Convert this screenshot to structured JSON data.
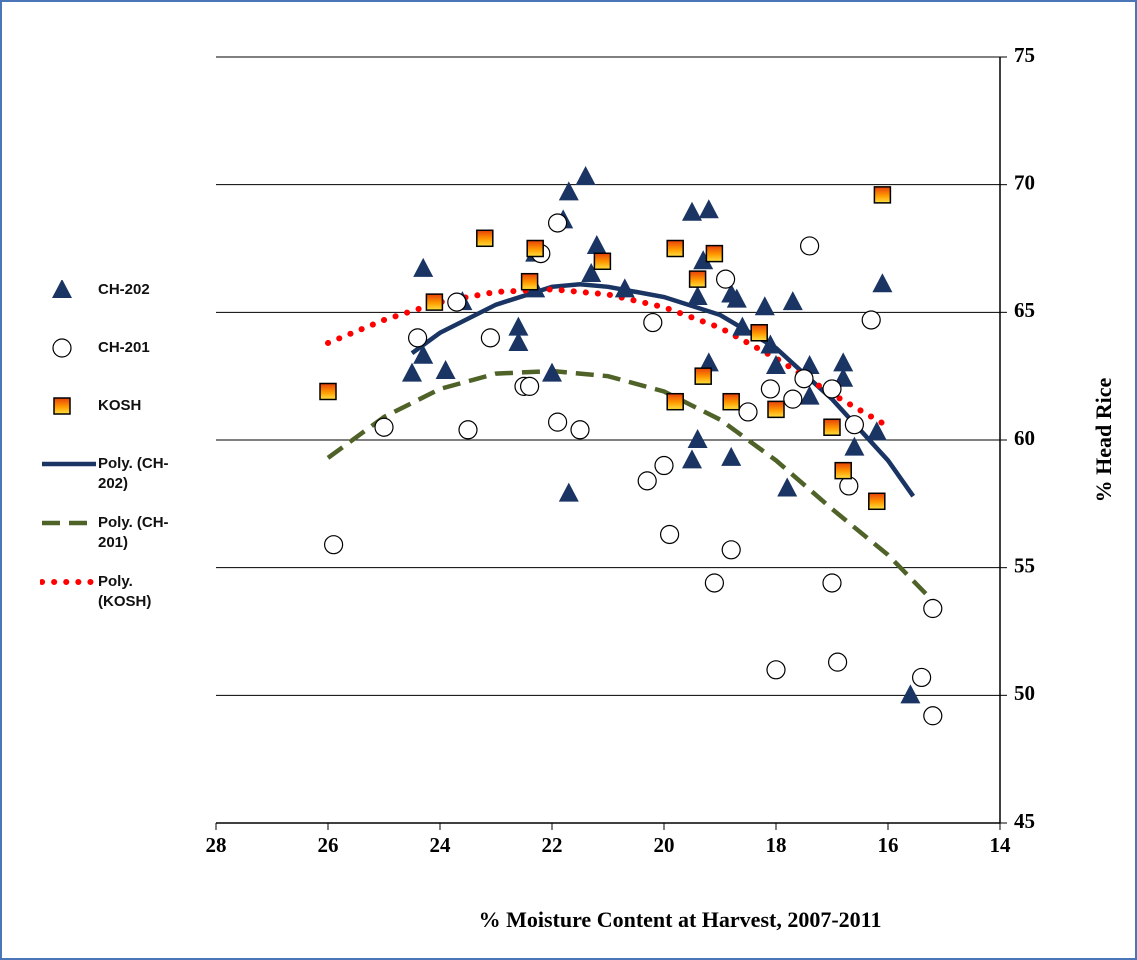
{
  "chart_data": {
    "type": "scatter",
    "x_label": "% Moisture Content at Harvest, 2007-2011",
    "y_label": "% Head Rice",
    "xlim": [
      28,
      14
    ],
    "xticks": [
      28,
      26,
      24,
      22,
      20,
      18,
      16,
      14
    ],
    "ylim": [
      45,
      75
    ],
    "yticks": [
      45,
      50,
      55,
      60,
      65,
      70,
      75
    ],
    "grid": true,
    "y_axis_side": "right",
    "legend": "left",
    "series": [
      {
        "name": "CH-202",
        "color": "#1a3563",
        "marker": "triangle",
        "x": [
          24.3,
          24.3,
          24.5,
          23.9,
          23.6,
          22.6,
          22.6,
          22.0,
          22.3,
          22.3,
          21.8,
          21.7,
          21.4,
          21.2,
          21.3,
          21.7,
          20.7,
          19.5,
          19.2,
          19.4,
          19.3,
          19.2,
          19.4,
          19.5,
          18.8,
          18.7,
          18.8,
          18.6,
          18.2,
          18.1,
          18.0,
          17.7,
          17.8,
          17.4,
          17.4,
          16.8,
          16.8,
          16.6,
          16.2,
          16.1,
          15.6
        ],
        "values": [
          66.7,
          63.3,
          62.6,
          62.7,
          65.4,
          64.4,
          63.8,
          62.6,
          67.3,
          65.9,
          68.6,
          69.7,
          70.3,
          67.6,
          66.5,
          57.9,
          65.9,
          68.9,
          69.0,
          65.6,
          67.0,
          63.0,
          60.0,
          59.2,
          65.7,
          65.5,
          59.3,
          64.4,
          65.2,
          63.7,
          62.9,
          65.4,
          58.1,
          62.9,
          61.7,
          63.0,
          62.4,
          59.7,
          60.3,
          66.1,
          50.0
        ]
      },
      {
        "name": "CH-201",
        "color": "#ffffff",
        "marker": "circle",
        "x": [
          25.9,
          25.0,
          24.4,
          23.7,
          23.5,
          23.1,
          22.5,
          22.4,
          22.2,
          21.9,
          21.9,
          21.5,
          20.3,
          20.2,
          20.0,
          19.9,
          19.1,
          18.9,
          18.8,
          18.5,
          18.1,
          18.0,
          17.7,
          17.5,
          17.4,
          17.0,
          17.0,
          16.9,
          16.7,
          16.6,
          16.3,
          15.4,
          15.2,
          15.2
        ],
        "values": [
          55.9,
          60.5,
          64.0,
          65.4,
          60.4,
          64.0,
          62.1,
          62.1,
          67.3,
          68.5,
          60.7,
          60.4,
          58.4,
          64.6,
          59.0,
          56.3,
          54.4,
          66.3,
          55.7,
          61.1,
          62.0,
          51.0,
          61.6,
          62.4,
          67.6,
          62.0,
          54.4,
          51.3,
          58.2,
          60.6,
          64.7,
          50.7,
          53.4,
          49.2
        ]
      },
      {
        "name": "KOSH",
        "color": "#ff9900",
        "marker": "square",
        "x": [
          26.0,
          24.1,
          23.2,
          22.4,
          22.3,
          21.1,
          19.8,
          19.8,
          19.4,
          19.3,
          19.1,
          18.8,
          18.3,
          18.0,
          17.0,
          16.8,
          16.2,
          16.1
        ],
        "values": [
          61.9,
          65.4,
          67.9,
          66.2,
          67.5,
          67.0,
          67.5,
          61.5,
          66.3,
          62.5,
          67.3,
          61.5,
          64.2,
          61.2,
          60.5,
          58.8,
          57.6,
          69.6
        ]
      },
      {
        "name": "Poly. (CH-202)",
        "color": "#1a3563",
        "line": "solid",
        "x": [
          24.5,
          24,
          23,
          22,
          21.5,
          21,
          20,
          19,
          18,
          17,
          16,
          15.55
        ],
        "values": [
          63.4,
          64.2,
          65.3,
          66.0,
          66.1,
          66.0,
          65.6,
          64.9,
          63.6,
          61.6,
          59.2,
          57.8
        ]
      },
      {
        "name": "Poly. (CH-201)",
        "color": "#4f6228",
        "line": "dashed",
        "x": [
          26,
          25,
          24,
          23,
          22,
          21,
          20,
          19,
          18,
          17,
          16,
          15.2
        ],
        "values": [
          59.3,
          60.9,
          62.0,
          62.6,
          62.7,
          62.5,
          61.9,
          60.8,
          59.2,
          57.3,
          55.5,
          53.7
        ]
      },
      {
        "name": "Poly. (KOSH)",
        "color": "#ff0000",
        "line": "dotted",
        "x": [
          26,
          25,
          24,
          23,
          22,
          21,
          20,
          19,
          18,
          17,
          16.05
        ],
        "values": [
          63.8,
          64.7,
          65.4,
          65.8,
          65.9,
          65.7,
          65.2,
          64.4,
          63.2,
          61.8,
          60.6
        ]
      }
    ]
  }
}
